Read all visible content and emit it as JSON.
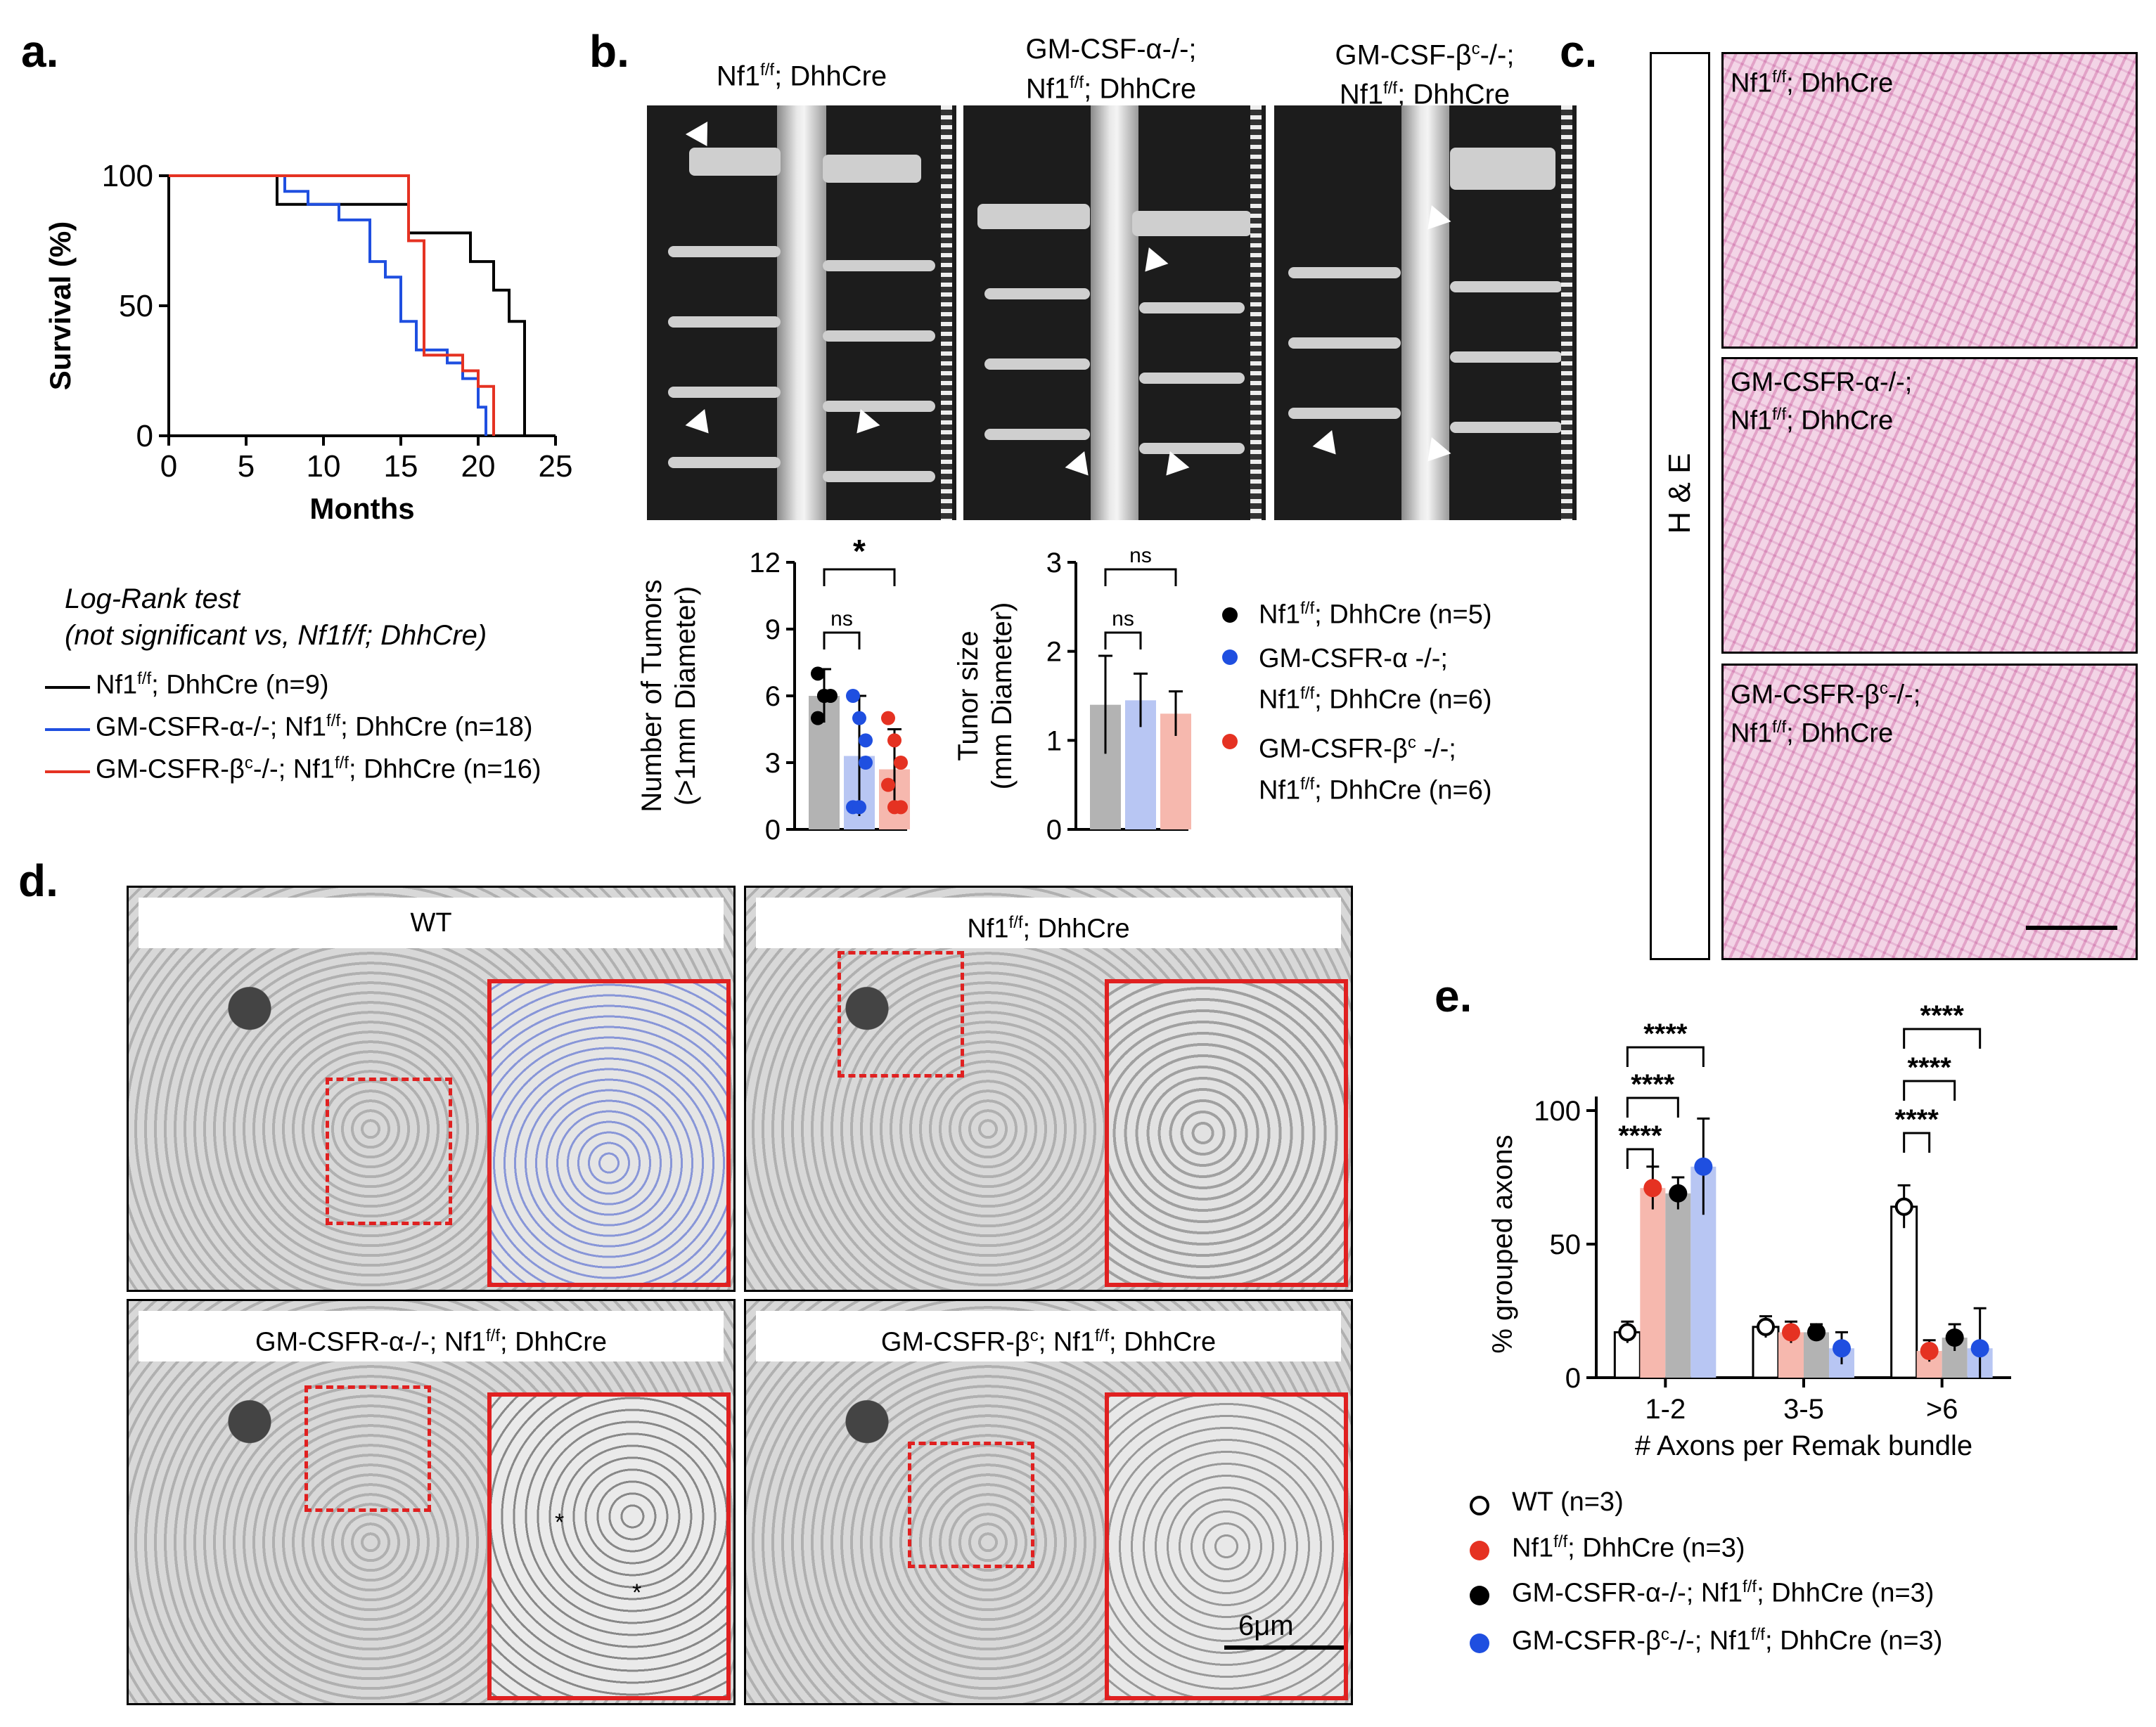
{
  "panel_letters": {
    "a": "a.",
    "b": "b.",
    "c": "c.",
    "d": "d.",
    "e": "e."
  },
  "colors": {
    "black": "#000000",
    "blue": "#1f4fe0",
    "red": "#e53222",
    "light_blue": "#b8c6f3",
    "light_red": "#f6b8ae",
    "grey": "#b3b3b3"
  },
  "panel_a": {
    "chart_data": {
      "type": "line",
      "subtype": "kaplan-meier step",
      "xlabel": "Months",
      "ylabel": "Survival (%)",
      "xlim": [
        0,
        25
      ],
      "ylim": [
        0,
        100
      ],
      "x_ticks": [
        "0",
        "5",
        "10",
        "15",
        "20",
        "25"
      ],
      "y_ticks": [
        "0",
        "50",
        "100"
      ],
      "series": [
        {
          "name": "Nf1f/f; DhhCre (n=9)",
          "color": "#000000",
          "x": [
            0,
            7,
            15,
            15.5,
            18,
            19.5,
            21,
            22,
            23,
            23
          ],
          "y": [
            100,
            89,
            89,
            78,
            78,
            67,
            56,
            44,
            33,
            0
          ]
        },
        {
          "name": "GM-CSFR-α-/-; Nf1f/f; DhhCre (n=18)",
          "color": "#1f4fe0",
          "x": [
            0,
            7.5,
            9,
            11,
            13,
            14,
            15,
            16,
            18,
            19,
            20,
            20.5
          ],
          "y": [
            100,
            94,
            89,
            83,
            67,
            61,
            44,
            33,
            28,
            22,
            11,
            0
          ]
        },
        {
          "name": "GM-CSFR-βc-/-; Nf1f/f; DhhCre (n=16)",
          "color": "#e53222",
          "x": [
            0,
            8,
            13,
            15.5,
            16.5,
            19,
            20,
            21,
            21
          ],
          "y": [
            100,
            100,
            100,
            75,
            31,
            25,
            19,
            6,
            0
          ]
        }
      ]
    },
    "test_title": "Log-Rank test",
    "test_note": "(not significant vs, Nf1f/f; DhhCre)",
    "legend": [
      {
        "pre": "Nf1",
        "sup": "f/f",
        "post": "; DhhCre (n=9)",
        "color": "#000000"
      },
      {
        "pre": "GM-CSFR-α-/-; Nf1",
        "sup": "f/f",
        "post": "; DhhCre (n=18)",
        "color": "#1f4fe0"
      },
      {
        "pre": "GM-CSFR-β",
        "sup": "c",
        "post": "-/-; Nf1",
        "sup2": "f/f",
        "post2": "; DhhCre (n=16)",
        "color": "#e53222"
      }
    ]
  },
  "panel_b": {
    "photo_titles": [
      {
        "line1_pre": "Nf1",
        "line1_sup": "f/f",
        "line1_post": "; DhhCre",
        "line2": ""
      },
      {
        "line1_pre": "GM-CSF-α-/-;",
        "line1_sup": "",
        "line1_post": "",
        "line2_pre": "Nf1",
        "line2_sup": "f/f",
        "line2_post": "; DhhCre"
      },
      {
        "line1_pre": "GM-CSF-β",
        "line1_sup": "c",
        "line1_post": "-/-;",
        "line2_pre": "Nf1",
        "line2_sup": "f/f",
        "line2_post": "; DhhCre"
      }
    ],
    "charts": [
      {
        "chart_data": {
          "type": "bar",
          "categories": [
            "Nf1f/f; DhhCre",
            "GM-CSFR-α -/-; Nf1f/f; DhhCre",
            "GM-CSFR-βc -/-; Nf1f/f; DhhCre"
          ],
          "values": [
            6.0,
            3.3,
            2.7
          ],
          "errors": [
            1.2,
            2.7,
            1.8
          ],
          "points": [
            [
              7,
              6,
              6,
              5,
              6
            ],
            [
              6,
              5,
              3,
              1,
              1,
              4
            ],
            [
              5,
              4,
              3,
              2,
              1,
              1
            ]
          ],
          "ylabel": "Number of Tumors\n(>1mm Diameter)",
          "ylabel_line1": "Number of Tumors",
          "ylabel_line2": "(>1mm Diameter)",
          "ylim": [
            0,
            12
          ],
          "y_ticks": [
            "0",
            "3",
            "6",
            "9",
            "12"
          ],
          "significance": [
            {
              "label": "ns",
              "pair": [
                0,
                1
              ]
            },
            {
              "label": "*",
              "pair": [
                0,
                2
              ]
            }
          ]
        }
      },
      {
        "chart_data": {
          "type": "bar",
          "categories": [
            "Nf1f/f; DhhCre",
            "GM-CSFR-α -/-; Nf1f/f; DhhCre",
            "GM-CSFR-βc -/-; Nf1f/f; DhhCre"
          ],
          "values": [
            1.4,
            1.45,
            1.3
          ],
          "errors": [
            0.55,
            0.3,
            0.25
          ],
          "ylabel_line1": "Tunor size",
          "ylabel_line2": "(mm Diameter)",
          "ylim": [
            0,
            3
          ],
          "y_ticks": [
            "0",
            "1",
            "2",
            "3"
          ],
          "significance": [
            {
              "label": "ns",
              "pair": [
                0,
                1
              ]
            },
            {
              "label": "ns",
              "pair": [
                0,
                2
              ]
            }
          ]
        }
      }
    ],
    "legend": [
      {
        "text_pre": "Nf1",
        "sup": "f/f",
        "text_post": "; DhhCre (n=5)",
        "line2": "",
        "color": "#000000"
      },
      {
        "text_pre": "GM-CSFR-α -/-;",
        "sup": "",
        "text_post": "",
        "line2_pre": "Nf1",
        "line2_sup": "f/f",
        "line2_post": "; DhhCre (n=6)",
        "color": "#1f4fe0"
      },
      {
        "text_pre": "GM-CSFR-β",
        "sup": "c",
        "text_post": " -/-;",
        "line2_pre": "Nf1",
        "line2_sup": "f/f",
        "line2_post": "; DhhCre  (n=6)",
        "color": "#e53222"
      }
    ]
  },
  "panel_c": {
    "side_label": "H & E",
    "image_labels": [
      {
        "l1_pre": "Nf1",
        "l1_sup": "f/f",
        "l1_post": "; DhhCre",
        "l2_pre": "",
        "l2_sup": "",
        "l2_post": ""
      },
      {
        "l1_pre": "GM-CSFR-α-/-;",
        "l1_sup": "",
        "l1_post": "",
        "l2_pre": "Nf1",
        "l2_sup": "f/f",
        "l2_post": "; DhhCre"
      },
      {
        "l1_pre": "GM-CSFR-β",
        "l1_sup": "c",
        "l1_post": "-/-;",
        "l2_pre": "Nf1",
        "l2_sup": "f/f",
        "l2_post": "; DhhCre"
      }
    ]
  },
  "panel_d": {
    "titles": [
      {
        "pre": "WT",
        "sup": "",
        "post": ""
      },
      {
        "pre": "Nf1",
        "sup": "f/f",
        "post": "; DhhCre"
      },
      {
        "pre": "GM-CSFR-α-/-; Nf1",
        "sup": "f/f",
        "post": "; DhhCre"
      },
      {
        "pre": "GM-CSFR-β",
        "sup": "c",
        "post": "; Nf1",
        "sup2": "f/f",
        "post2": "; DhhCre"
      }
    ],
    "scale_bar": "6μm",
    "asterisk": "*"
  },
  "panel_e": {
    "chart_data": {
      "type": "bar",
      "categories": [
        "1-2",
        "3-5",
        ">6"
      ],
      "xlabel": "# Axons per Remak bundle",
      "ylabel": "% grouped axons",
      "ylim": [
        0,
        100
      ],
      "y_ticks": [
        "0",
        "50",
        "100"
      ],
      "series": [
        {
          "name": "WT (n=3)",
          "color": "#ffffff",
          "marker": "open-black",
          "values": [
            17,
            19,
            64
          ],
          "errors": [
            4,
            4,
            8
          ]
        },
        {
          "name": "Nf1f/f; DhhCre (n=3)",
          "color": "#f6b8ae",
          "marker": "#e53222",
          "values": [
            71,
            17,
            10
          ],
          "errors": [
            8,
            4,
            4
          ]
        },
        {
          "name": "GM-CSFR-α-/-; Nf1f/f; DhhCre (n=3)",
          "color": "#b3b3b3",
          "marker": "#000000",
          "values": [
            69,
            17,
            15
          ],
          "errors": [
            6,
            3,
            5
          ]
        },
        {
          "name": "GM-CSFR-βc-/-; Nf1f/f; DhhCre (n=3)",
          "color": "#b8c6f3",
          "marker": "#1f4fe0",
          "values": [
            79,
            11,
            11
          ],
          "errors": [
            18,
            6,
            15
          ]
        }
      ],
      "significance": [
        {
          "group": "1-2",
          "label": "****"
        },
        {
          "group": "1-2",
          "label": "****"
        },
        {
          "group": "1-2",
          "label": "****"
        },
        {
          "group": ">6",
          "label": "****"
        },
        {
          "group": ">6",
          "label": "****"
        },
        {
          "group": ">6",
          "label": "****"
        }
      ]
    },
    "legend": [
      {
        "pre": "WT (n=3)",
        "sup": "",
        "post": ""
      },
      {
        "pre": "Nf1",
        "sup": "f/f",
        "post": "; DhhCre (n=3)"
      },
      {
        "pre": "GM-CSFR-α-/-; Nf1",
        "sup": "f/f",
        "post": "; DhhCre (n=3)"
      },
      {
        "pre": "GM-CSFR-β",
        "sup": "c",
        "post": "-/-; Nf1",
        "sup2": "f/f",
        "post2": "; DhhCre (n=3)"
      }
    ]
  }
}
